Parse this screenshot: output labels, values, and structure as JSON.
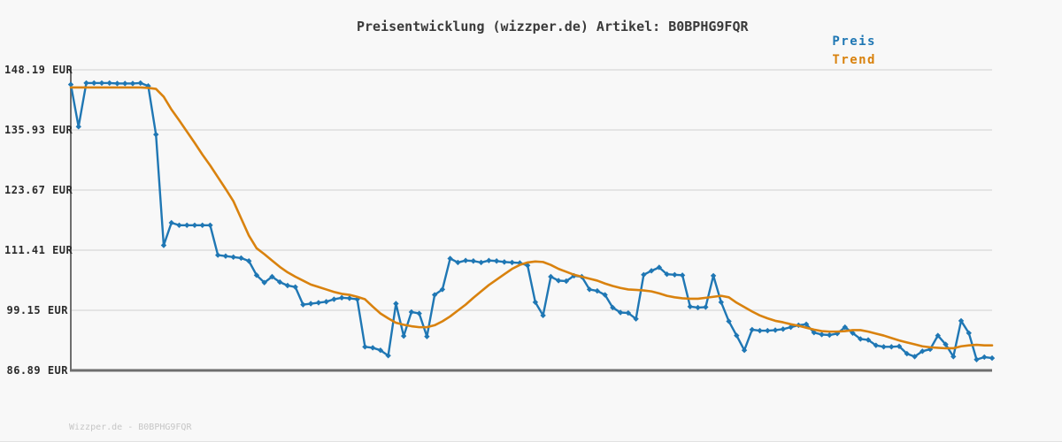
{
  "page": {
    "background": "#f8f8f8",
    "title": "Preisentwicklung (wizzper.de) Artikel: B0BPHG9FQR",
    "watermark": "Wizzper.de - B0BPHG9FQR"
  },
  "legend": {
    "position": "top-right",
    "items": [
      {
        "label": "Preis",
        "color": "#1f77b4"
      },
      {
        "label": "Trend",
        "color": "#d9820e"
      }
    ]
  },
  "chart_data": {
    "type": "line",
    "title": "Preisentwicklung (wizzper.de) Artikel: B0BPHG9FQR",
    "currency": "EUR",
    "xlabel": "",
    "ylabel": "",
    "x_axis_labels_visible": false,
    "grid": "horizontal",
    "grid_color": "#e4e4e4",
    "axis_color": "#6e6e6e",
    "ylim": [
      86.89,
      148.19
    ],
    "yticks": [
      {
        "value": 148.19,
        "label": "148.19 EUR"
      },
      {
        "value": 135.93,
        "label": "135.93 EUR"
      },
      {
        "value": 123.67,
        "label": "123.67 EUR"
      },
      {
        "value": 111.41,
        "label": "111.41 EUR"
      },
      {
        "value": 99.15,
        "label": "99.15 EUR"
      },
      {
        "value": 86.89,
        "label": "86.89 EUR"
      }
    ],
    "legend_position": "top-right-outside",
    "series": [
      {
        "name": "Preis",
        "color": "#1f77b4",
        "marker": "diamond",
        "line_width": 2.4,
        "values": [
          145.2,
          136.6,
          145.5,
          145.5,
          145.5,
          145.5,
          145.4,
          145.4,
          145.4,
          145.5,
          144.9,
          135.0,
          112.4,
          117.0,
          116.5,
          116.5,
          116.5,
          116.5,
          116.5,
          110.4,
          110.2,
          110.0,
          109.8,
          109.2,
          106.3,
          104.8,
          106.0,
          104.9,
          104.2,
          103.9,
          100.3,
          100.5,
          100.7,
          100.9,
          101.4,
          101.7,
          101.6,
          101.4,
          91.7,
          91.5,
          91.0,
          89.9,
          100.5,
          93.9,
          98.8,
          98.5,
          93.8,
          102.3,
          103.4,
          109.7,
          108.9,
          109.3,
          109.2,
          108.9,
          109.3,
          109.2,
          109.0,
          108.9,
          108.8,
          108.3,
          100.8,
          98.1,
          106.0,
          105.2,
          105.1,
          106.2,
          106.0,
          103.4,
          103.1,
          102.3,
          99.7,
          98.7,
          98.6,
          97.4,
          106.4,
          107.2,
          107.9,
          106.5,
          106.4,
          106.3,
          99.9,
          99.7,
          99.8,
          106.2,
          100.8,
          96.9,
          94.0,
          91.0,
          95.2,
          95.0,
          95.0,
          95.1,
          95.3,
          95.7,
          96.1,
          96.3,
          94.6,
          94.2,
          94.1,
          94.4,
          95.7,
          94.5,
          93.3,
          93.1,
          92.0,
          91.7,
          91.7,
          91.8,
          90.3,
          89.7,
          90.8,
          91.2,
          94.0,
          92.2,
          89.7,
          97.0,
          94.5,
          89.1,
          89.6,
          89.4
        ]
      },
      {
        "name": "Trend",
        "color": "#d9820e",
        "marker": "none",
        "line_width": 2.6,
        "values": [
          144.6,
          144.6,
          144.6,
          144.6,
          144.6,
          144.6,
          144.6,
          144.6,
          144.6,
          144.6,
          144.5,
          144.3,
          142.7,
          140.1,
          137.9,
          135.6,
          133.3,
          130.9,
          128.7,
          126.3,
          123.9,
          121.4,
          117.9,
          114.4,
          111.8,
          110.6,
          109.3,
          108.0,
          106.9,
          106.0,
          105.2,
          104.4,
          103.9,
          103.4,
          102.9,
          102.5,
          102.3,
          101.9,
          101.4,
          99.9,
          98.5,
          97.5,
          96.6,
          96.2,
          95.9,
          95.7,
          95.7,
          96.1,
          96.9,
          97.9,
          99.1,
          100.3,
          101.7,
          103.0,
          104.3,
          105.4,
          106.5,
          107.6,
          108.4,
          108.9,
          109.1,
          109.0,
          108.4,
          107.6,
          107.0,
          106.4,
          106.0,
          105.6,
          105.2,
          104.6,
          104.1,
          103.7,
          103.4,
          103.3,
          103.2,
          103.0,
          102.6,
          102.1,
          101.8,
          101.6,
          101.5,
          101.5,
          101.7,
          101.9,
          102.1,
          101.8,
          100.7,
          99.8,
          98.9,
          98.1,
          97.5,
          97.0,
          96.7,
          96.3,
          96.0,
          95.6,
          95.2,
          94.9,
          94.8,
          94.8,
          94.9,
          95.1,
          95.1,
          94.8,
          94.4,
          94.0,
          93.5,
          93.0,
          92.6,
          92.2,
          91.8,
          91.6,
          91.5,
          91.4,
          91.4,
          91.8,
          92.0,
          92.1,
          92.0,
          92.0
        ]
      }
    ]
  }
}
